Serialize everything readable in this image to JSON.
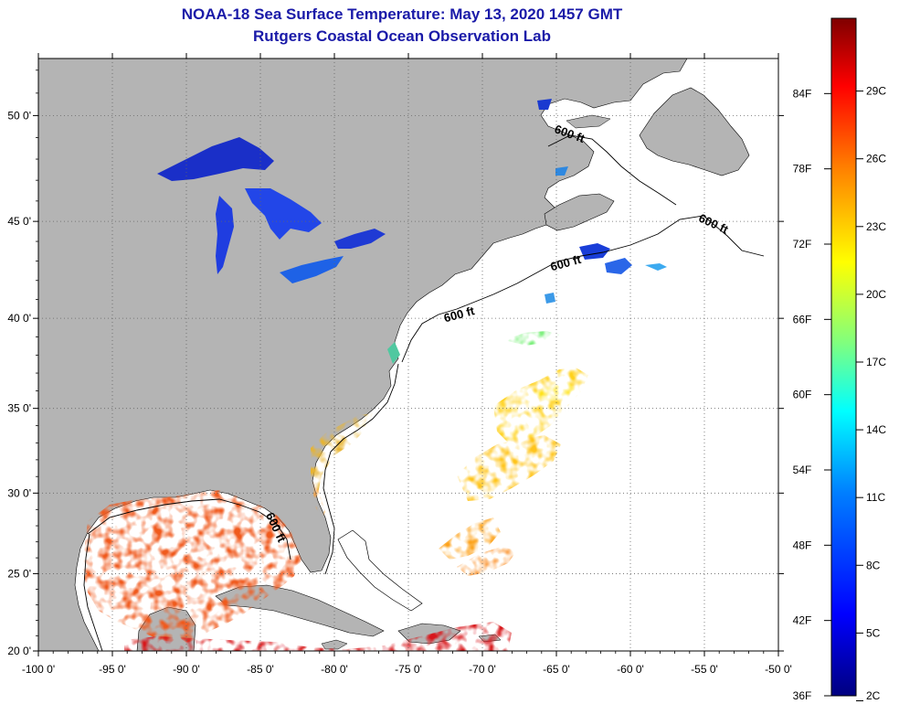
{
  "header": {
    "title": "NOAA-18 Sea Surface Temperature:  May 13, 2020 1457 GMT",
    "subtitle": "Rutgers Coastal Ocean Observation Lab"
  },
  "map": {
    "lon_range": [
      -100,
      -50
    ],
    "lat_range": [
      20,
      52.5
    ],
    "lon_ticks": [
      {
        "value": -100,
        "label": "-100 0'"
      },
      {
        "value": -95,
        "label": "-95 0'"
      },
      {
        "value": -90,
        "label": "-90 0'"
      },
      {
        "value": -85,
        "label": "-85 0'"
      },
      {
        "value": -80,
        "label": "-80 0'"
      },
      {
        "value": -75,
        "label": "-75 0'"
      },
      {
        "value": -70,
        "label": "-70 0'"
      },
      {
        "value": -65,
        "label": "-65 0'"
      },
      {
        "value": -60,
        "label": "-60 0'"
      },
      {
        "value": -55,
        "label": "-55 0'"
      },
      {
        "value": -50,
        "label": "-50 0'"
      }
    ],
    "lat_ticks": [
      {
        "value": 50,
        "label": "50 0'"
      },
      {
        "value": 45,
        "label": "45 0'"
      },
      {
        "value": 40,
        "label": "40 0'"
      },
      {
        "value": 35,
        "label": "35 0'"
      },
      {
        "value": 30,
        "label": "30 0'"
      },
      {
        "value": 25,
        "label": "25 0'"
      },
      {
        "value": 20,
        "label": "20 0'"
      }
    ],
    "contour_labels": [
      {
        "text": "600 ft",
        "lon": -64.2,
        "lat": 49.0
      },
      {
        "text": "600 ft",
        "lon": -54.5,
        "lat": 44.7
      },
      {
        "text": "600 ft",
        "lon": -64.3,
        "lat": 42.7
      },
      {
        "text": "600 ft",
        "lon": -71.5,
        "lat": 40.0
      },
      {
        "text": "600 ft",
        "lon": -84.2,
        "lat": 27.8
      }
    ],
    "land_color": "#b4b4b4",
    "ocean_color": "#ffffff"
  },
  "colorbar": {
    "min_f": 36,
    "max_f": 90,
    "fahrenheit_labels": [
      "84F",
      "78F",
      "72F",
      "66F",
      "60F",
      "54F",
      "48F",
      "42F",
      "36F"
    ],
    "fahrenheit_values": [
      84,
      78,
      72,
      66,
      60,
      54,
      48,
      42,
      36
    ],
    "celsius_labels": [
      "29C",
      "26C",
      "23C",
      "20C",
      "17C",
      "14C",
      "11C",
      "8C",
      "5C",
      "2C"
    ],
    "celsius_values": [
      29,
      26,
      23,
      20,
      17,
      14,
      11,
      8,
      5,
      2
    ],
    "colors": [
      "#00007f",
      "#0000ff",
      "#007fff",
      "#00ffff",
      "#7fff7f",
      "#ffff00",
      "#ff7f00",
      "#ff0000",
      "#7f0000"
    ]
  }
}
